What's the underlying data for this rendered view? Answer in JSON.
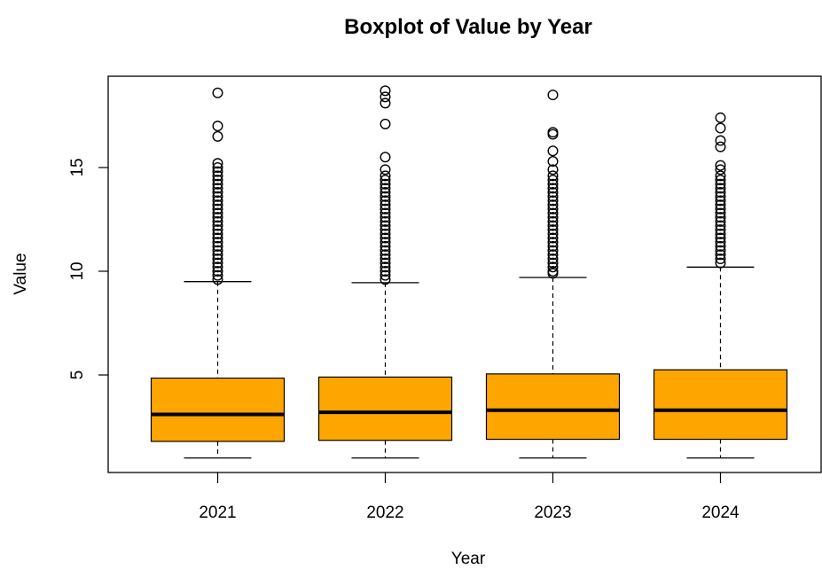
{
  "chart_data": {
    "type": "boxplot",
    "title": "Boxplot of Value by Year",
    "xlabel": "Year",
    "ylabel": "Value",
    "ylim": [
      0.3,
      19.4
    ],
    "yticks": [
      5,
      10,
      15
    ],
    "categories": [
      "2021",
      "2022",
      "2023",
      "2024"
    ],
    "box_color": "#ffa500",
    "boxes": [
      {
        "category": "2021",
        "whisker_low": 1.0,
        "q1": 1.8,
        "median": 3.1,
        "q3": 4.85,
        "whisker_high": 9.5,
        "outliers": [
          18.6,
          17.0,
          16.5,
          15.2,
          15.0,
          14.8,
          14.6,
          14.4,
          14.2,
          14.0,
          13.8,
          13.6,
          13.4,
          13.2,
          13.0,
          12.8,
          12.6,
          12.4,
          12.2,
          12.0,
          11.8,
          11.6,
          11.4,
          11.2,
          11.0,
          10.8,
          10.6,
          10.4,
          10.2,
          10.0,
          9.8,
          9.6
        ]
      },
      {
        "category": "2022",
        "whisker_low": 1.0,
        "q1": 1.85,
        "median": 3.2,
        "q3": 4.9,
        "whisker_high": 9.45,
        "outliers": [
          18.7,
          18.4,
          18.1,
          17.1,
          15.5,
          14.9,
          14.6,
          14.4,
          14.2,
          14.0,
          13.8,
          13.6,
          13.4,
          13.2,
          13.0,
          12.8,
          12.6,
          12.4,
          12.2,
          12.0,
          11.8,
          11.6,
          11.4,
          11.2,
          11.0,
          10.8,
          10.6,
          10.4,
          10.2,
          10.0,
          9.8,
          9.6
        ]
      },
      {
        "category": "2023",
        "whisker_low": 1.0,
        "q1": 1.9,
        "median": 3.3,
        "q3": 5.05,
        "whisker_high": 9.7,
        "outliers": [
          18.5,
          16.7,
          16.6,
          15.8,
          15.3,
          14.9,
          14.6,
          14.4,
          14.2,
          14.0,
          13.8,
          13.6,
          13.4,
          13.2,
          13.0,
          12.8,
          12.6,
          12.4,
          12.2,
          12.0,
          11.8,
          11.6,
          11.4,
          11.2,
          11.0,
          10.8,
          10.6,
          10.4,
          10.2,
          10.0,
          9.9
        ]
      },
      {
        "category": "2024",
        "whisker_low": 1.0,
        "q1": 1.9,
        "median": 3.3,
        "q3": 5.25,
        "whisker_high": 10.2,
        "outliers": [
          17.4,
          16.9,
          16.3,
          16.0,
          15.1,
          14.9,
          14.6,
          14.4,
          14.2,
          14.0,
          13.8,
          13.6,
          13.4,
          13.2,
          13.0,
          12.8,
          12.6,
          12.4,
          12.2,
          12.0,
          11.8,
          11.6,
          11.4,
          11.2,
          11.0,
          10.8,
          10.6,
          10.4
        ]
      }
    ]
  }
}
